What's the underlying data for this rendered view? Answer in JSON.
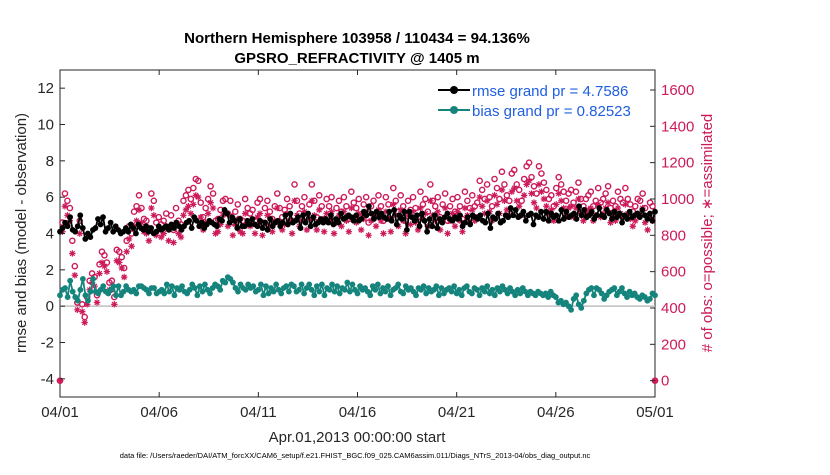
{
  "chart_data": {
    "type": "line",
    "title": "Northern Hemisphere 103958 / 110434 = 94.136%",
    "subtitle": "GPSRO_REFRACTIVITY @ 1405 m",
    "xlabel": "Apr.01,2013 00:00:00 start",
    "ylabel_left": "rmse and bias (model - observation)",
    "ylabel_right": "# of obs: o=possible; ∗=assimilated",
    "footnote": "data file: /Users/raeder/DAI/ATM_forcXX/CAM6_setup/f.e21.FHIST_BGC.f09_025.CAM6assim.011/Diags_NTrS_2013-04/obs_diag_output.nc",
    "x_ticks": [
      "04/01",
      "04/06",
      "04/11",
      "04/16",
      "04/21",
      "04/26",
      "05/01"
    ],
    "ylim_left": [
      -5,
      13
    ],
    "yticks_left": [
      "-4",
      "-2",
      "0",
      "2",
      "4",
      "6",
      "8",
      "10",
      "12"
    ],
    "ylim_right": [
      -90,
      1710
    ],
    "yticks_right": [
      "0",
      "200",
      "400",
      "600",
      "800",
      "1000",
      "1200",
      "1400",
      "1600"
    ],
    "zero_line": 0,
    "legend": [
      {
        "name": "rmse grand pr = 4.7586",
        "color": "#000000"
      },
      {
        "name": "bias grand pr = 0.82523",
        "color": "#14847c"
      }
    ],
    "colors": {
      "rmse": "#000000",
      "bias": "#14847c",
      "obs": "#cc1a5a",
      "zero": "#bfbfbf",
      "legend_text": "#1f5fe0"
    },
    "rmse_values": [
      4.1,
      4.3,
      4.6,
      4.4,
      4.9,
      4.2,
      4.1,
      4.4,
      5.0,
      4.3,
      3.7,
      4.0,
      3.8,
      4.2,
      4.3,
      4.8,
      4.5,
      4.9,
      4.1,
      4.3,
      4.6,
      4.1,
      4.4,
      4.2,
      4.0,
      4.1,
      4.3,
      4.1,
      4.5,
      4.3,
      4.0,
      4.5,
      4.3,
      4.2,
      4.4,
      4.1,
      4.3,
      4.0,
      4.1,
      4.4,
      4.2,
      4.3,
      4.4,
      4.2,
      4.5,
      4.3,
      4.6,
      4.4,
      4.2,
      4.4,
      4.6,
      4.7,
      4.3,
      4.9,
      4.7,
      4.4,
      4.6,
      4.3,
      4.5,
      4.7,
      4.6,
      4.5,
      4.4,
      4.8,
      4.7,
      5.3,
      5.1,
      4.6,
      4.9,
      4.7,
      4.3,
      4.8,
      4.4,
      4.4,
      4.7,
      4.5,
      4.8,
      4.5,
      4.4,
      4.7,
      4.3,
      4.6,
      4.2,
      4.8,
      4.4,
      4.6,
      4.7,
      4.4,
      4.6,
      5.0,
      4.5,
      5.1,
      4.6,
      4.7,
      4.9,
      4.3,
      5.0,
      4.6,
      5.1,
      4.4,
      4.9,
      4.5,
      4.6,
      4.8,
      4.6,
      4.8,
      4.6,
      5.0,
      4.5,
      4.8,
      4.6,
      5.1,
      4.8,
      4.9,
      5.0,
      4.9,
      4.7,
      5.0,
      4.7,
      4.8,
      5.2,
      5.0,
      5.5,
      5.1,
      4.8,
      5.2,
      4.9,
      5.1,
      4.9,
      4.8,
      5.2,
      4.7,
      5.3,
      4.5,
      5.0,
      4.8,
      5.2,
      4.2,
      5.2,
      4.9,
      4.7,
      5.0,
      4.4,
      5.1,
      4.7,
      4.1,
      4.8,
      4.4,
      5.0,
      4.3,
      4.8,
      4.6,
      4.9,
      5.1,
      4.8,
      4.7,
      4.9,
      4.8,
      5.0,
      4.4,
      4.6,
      4.9,
      4.5,
      5.0,
      4.9,
      4.8,
      5.0,
      4.7,
      4.6,
      5.1,
      4.3,
      4.9,
      4.8,
      5.1,
      4.6,
      4.7,
      5.0,
      4.9,
      5.4,
      5.0,
      5.3,
      4.9,
      5.0,
      5.2,
      4.7,
      5.0,
      5.1,
      4.5,
      5.0,
      4.9,
      5.2,
      4.8,
      5.2,
      4.7,
      5.1,
      4.9,
      5.0,
      4.7,
      5.3,
      4.8,
      5.2,
      4.9,
      5.0,
      5.1,
      4.8,
      5.5,
      5.0,
      5.3,
      4.9,
      5.0,
      5.2,
      4.8,
      5.0,
      5.4,
      5.0,
      4.9,
      5.3,
      5.1,
      4.8,
      5.2,
      4.9,
      5.1,
      4.6,
      5.0,
      4.8,
      5.2,
      4.9,
      5.0,
      5.1,
      4.9,
      5.3,
      5.0,
      4.8,
      5.1,
      4.7,
      5.2
    ],
    "bias_values": [
      0.6,
      0.9,
      1.0,
      0.5,
      1.4,
      0.8,
      0.5,
      0.3,
      0.9,
      1.5,
      0.6,
      0.3,
      0.8,
      1.5,
      0.8,
      0.7,
      0.9,
      1.1,
      0.8,
      0.7,
      0.9,
      1.1,
      0.6,
      1.1,
      0.6,
      0.8,
      1.1,
      0.9,
      0.8,
      0.9,
      0.7,
      1.1,
      1.1,
      1.0,
      0.9,
      0.7,
      1.0,
      1.0,
      0.7,
      0.8,
      0.9,
      0.7,
      1.2,
      0.8,
      1.1,
      0.6,
      1.0,
      0.9,
      1.1,
      0.8,
      0.7,
      0.9,
      1.2,
      1.0,
      0.6,
      1.1,
      0.8,
      1.2,
      0.9,
      0.7,
      1.0,
      1.2,
      1.1,
      0.9,
      1.4,
      1.3,
      1.6,
      1.5,
      1.3,
      1.0,
      0.8,
      1.2,
      1.0,
      0.9,
      1.2,
      1.0,
      1.1,
      0.8,
      0.9,
      1.2,
      0.6,
      1.1,
      0.7,
      1.0,
      0.8,
      1.2,
      0.9,
      0.7,
      1.0,
      1.1,
      0.8,
      1.2,
      1.1,
      0.8,
      0.9,
      1.2,
      0.7,
      1.0,
      1.2,
      0.9,
      0.6,
      1.1,
      0.8,
      1.2,
      0.6,
      1.0,
      0.9,
      1.2,
      0.8,
      1.1,
      0.7,
      1.0,
      0.9,
      1.3,
      0.8,
      1.2,
      0.9,
      0.7,
      1.1,
      0.9,
      1.0,
      0.8,
      0.6,
      1.1,
      0.9,
      1.2,
      0.7,
      1.0,
      0.8,
      1.1,
      0.6,
      0.9,
      1.0,
      1.2,
      0.8,
      0.7,
      1.1,
      0.9,
      1.0,
      0.8,
      0.6,
      1.0,
      0.9,
      1.1,
      0.7,
      1.0,
      0.8,
      0.9,
      1.1,
      0.6,
      1.0,
      0.7,
      0.9,
      1.0,
      0.8,
      1.1,
      0.7,
      0.9,
      0.6,
      1.0,
      1.1,
      0.8,
      0.7,
      1.0,
      0.9,
      0.6,
      1.0,
      0.8,
      1.1,
      0.7,
      0.9,
      0.6,
      1.0,
      0.8,
      1.1,
      0.9,
      0.7,
      1.0,
      0.8,
      0.6,
      0.9,
      0.7,
      1.0,
      0.8,
      0.6,
      0.8,
      0.7,
      0.6,
      0.8,
      0.7,
      0.6,
      0.7,
      0.5,
      0.8,
      0.6,
      0.5,
      0.2,
      0.3,
      0.1,
      0.2,
      0.0,
      -0.2,
      0.4,
      0.6,
      0.1,
      -0.1,
      0.3,
      0.7,
      0.9,
      1.0,
      0.6,
      1.0,
      0.9,
      0.7,
      0.4,
      0.6,
      0.8,
      0.9,
      1.0,
      0.6,
      0.8,
      1.0,
      0.7,
      0.5,
      0.8,
      0.6,
      0.7,
      0.5,
      0.4,
      0.6,
      0.5,
      0.3,
      0.4,
      0.7,
      0.6
    ],
    "obs_possible_values": [
      0,
      870,
      1030,
      990,
      950,
      770,
      630,
      430,
      880,
      420,
      350,
      460,
      550,
      590,
      570,
      470,
      640,
      710,
      690,
      650,
      540,
      550,
      460,
      720,
      710,
      680,
      620,
      770,
      850,
      810,
      930,
      960,
      1020,
      950,
      890,
      880,
      840,
      1030,
      990,
      870,
      900,
      860,
      880,
      920,
      840,
      910,
      830,
      950,
      880,
      860,
      990,
      1020,
      1050,
      1000,
      1060,
      1110,
      1100,
      980,
      900,
      950,
      1000,
      1070,
      1030,
      880,
      890,
      940,
      990,
      1000,
      920,
      990,
      870,
      930,
      970,
      890,
      880,
      1000,
      950,
      920,
      940,
      880,
      980,
      1000,
      870,
      950,
      990,
      930,
      890,
      960,
      1030,
      950,
      900,
      940,
      1000,
      960,
      880,
      1080,
      990,
      920,
      960,
      1010,
      900,
      970,
      1080,
      990,
      900,
      1020,
      960,
      890,
      1000,
      960,
      1010,
      880,
      950,
      990,
      930,
      1010,
      960,
      890,
      1040,
      980,
      950,
      1000,
      900,
      970,
      1010,
      870,
      960,
      990,
      920,
      1020,
      960,
      880,
      1010,
      970,
      890,
      1060,
      990,
      930,
      1020,
      960,
      880,
      990,
      940,
      1010,
      950,
      900,
      1040,
      970,
      1000,
      930,
      1080,
      990,
      960,
      1010,
      900,
      970,
      1030,
      880,
      960,
      1000,
      930,
      1010,
      960,
      890,
      1040,
      990,
      950,
      1020,
      960,
      980,
      1100,
      1050,
      1000,
      1080,
      1010,
      960,
      1110,
      1060,
      1000,
      1150,
      1080,
      1020,
      990,
      1140,
      1160,
      1080,
      1050,
      990,
      1110,
      1180,
      1200,
      1120,
      1070,
      1030,
      1180,
      1140,
      1090,
      1050,
      1000,
      1020,
      960,
      1060,
      1120,
      1080,
      1040,
      990,
      1030,
      1050,
      980,
      1040,
      1090,
      1000,
      960,
      1000,
      1020,
      1040,
      960,
      990,
      1060,
      980,
      1000,
      1030,
      1070,
      950,
      990,
      960,
      1040,
      1000,
      980,
      1060,
      1000,
      970,
      930,
      960,
      1000,
      990,
      1030,
      950,
      900,
      980,
      960,
      0
    ],
    "obs_assim_values": [
      0,
      820,
      960,
      910,
      880,
      700,
      580,
      390,
      810,
      380,
      320,
      420,
      500,
      540,
      520,
      430,
      590,
      650,
      630,
      600,
      500,
      500,
      420,
      660,
      650,
      620,
      570,
      710,
      780,
      740,
      850,
      880,
      940,
      870,
      820,
      810,
      770,
      950,
      910,
      800,
      830,
      790,
      810,
      850,
      770,
      840,
      760,
      870,
      810,
      790,
      910,
      940,
      960,
      920,
      970,
      1020,
      1010,
      900,
      830,
      870,
      920,
      980,
      950,
      810,
      820,
      860,
      910,
      920,
      850,
      910,
      800,
      860,
      890,
      820,
      810,
      920,
      870,
      850,
      860,
      810,
      900,
      920,
      800,
      870,
      910,
      850,
      820,
      880,
      950,
      870,
      830,
      860,
      920,
      880,
      810,
      990,
      910,
      850,
      880,
      930,
      830,
      890,
      990,
      910,
      830,
      940,
      880,
      820,
      920,
      880,
      930,
      810,
      870,
      910,
      850,
      930,
      880,
      820,
      950,
      900,
      870,
      920,
      830,
      890,
      930,
      800,
      880,
      910,
      850,
      940,
      880,
      810,
      930,
      890,
      820,
      970,
      910,
      850,
      940,
      880,
      810,
      910,
      860,
      930,
      870,
      830,
      950,
      890,
      920,
      850,
      990,
      910,
      880,
      930,
      830,
      890,
      950,
      810,
      880,
      920,
      850,
      930,
      880,
      820,
      950,
      910,
      870,
      940,
      880,
      900,
      1010,
      960,
      920,
      990,
      930,
      880,
      1020,
      970,
      920,
      1050,
      990,
      940,
      910,
      1040,
      1060,
      990,
      960,
      910,
      1020,
      1080,
      1100,
      1030,
      980,
      950,
      1080,
      1040,
      1000,
      960,
      920,
      940,
      880,
      970,
      1030,
      990,
      950,
      910,
      950,
      960,
      900,
      950,
      1000,
      920,
      880,
      920,
      940,
      950,
      880,
      910,
      970,
      900,
      920,
      950,
      980,
      870,
      910,
      880,
      950,
      920,
      900,
      970,
      920,
      890,
      850,
      880,
      920,
      910,
      950,
      870,
      830,
      900,
      880,
      0
    ]
  }
}
